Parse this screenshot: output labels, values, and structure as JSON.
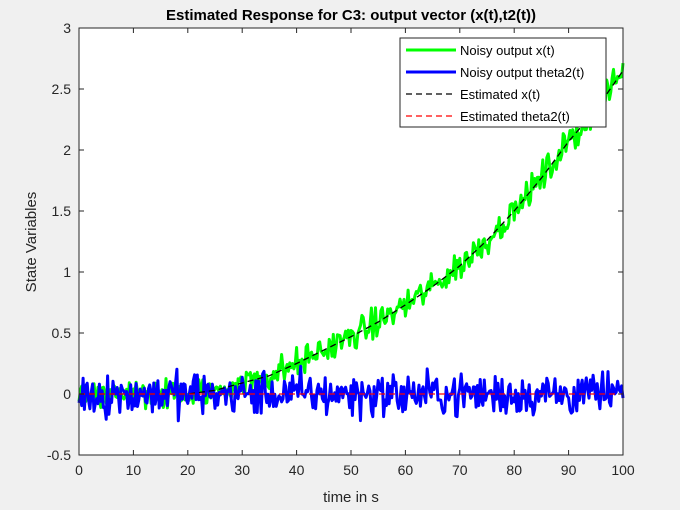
{
  "chart_data": {
    "type": "line",
    "title": "Estimated Response for C3: output vector (x(t),t2(t))",
    "xlabel": "time in s",
    "ylabel": "State Variables",
    "xlim": [
      0,
      100
    ],
    "ylim": [
      -0.5,
      3
    ],
    "xticks": [
      0,
      10,
      20,
      30,
      40,
      50,
      60,
      70,
      80,
      90,
      100
    ],
    "yticks": [
      -0.5,
      0,
      0.5,
      1,
      1.5,
      2,
      2.5,
      3
    ],
    "grid": false,
    "legend_position": "top-right",
    "series": [
      {
        "name": "Noisy output x(t)",
        "color": "#00ff00",
        "style": "solid",
        "noise_sd": 0.06,
        "x": [
          0,
          10,
          20,
          25,
          30,
          35,
          40,
          45,
          50,
          55,
          60,
          65,
          70,
          75,
          80,
          85,
          90,
          95,
          100
        ],
        "y": [
          0,
          0,
          0,
          0.03,
          0.09,
          0.15,
          0.25,
          0.36,
          0.47,
          0.59,
          0.73,
          0.88,
          1.05,
          1.26,
          1.5,
          1.77,
          2.07,
          2.33,
          2.65
        ]
      },
      {
        "name": "Noisy output theta2(t)",
        "color": "#0000ff",
        "style": "solid",
        "noise_sd": 0.09,
        "x": [
          0,
          100
        ],
        "y": [
          0,
          0
        ]
      },
      {
        "name": "Estimated x(t)",
        "color": "#000000",
        "style": "dashed",
        "x": [
          0,
          10,
          20,
          25,
          30,
          35,
          40,
          45,
          50,
          55,
          60,
          65,
          70,
          75,
          80,
          85,
          90,
          95,
          100
        ],
        "y": [
          0,
          0,
          0,
          0.03,
          0.09,
          0.15,
          0.25,
          0.36,
          0.47,
          0.59,
          0.73,
          0.88,
          1.05,
          1.26,
          1.5,
          1.77,
          2.07,
          2.33,
          2.65
        ]
      },
      {
        "name": "Estimated theta2(t)",
        "color": "#ff0000",
        "style": "dashed",
        "x": [
          0,
          100
        ],
        "y": [
          0,
          0
        ]
      }
    ]
  }
}
